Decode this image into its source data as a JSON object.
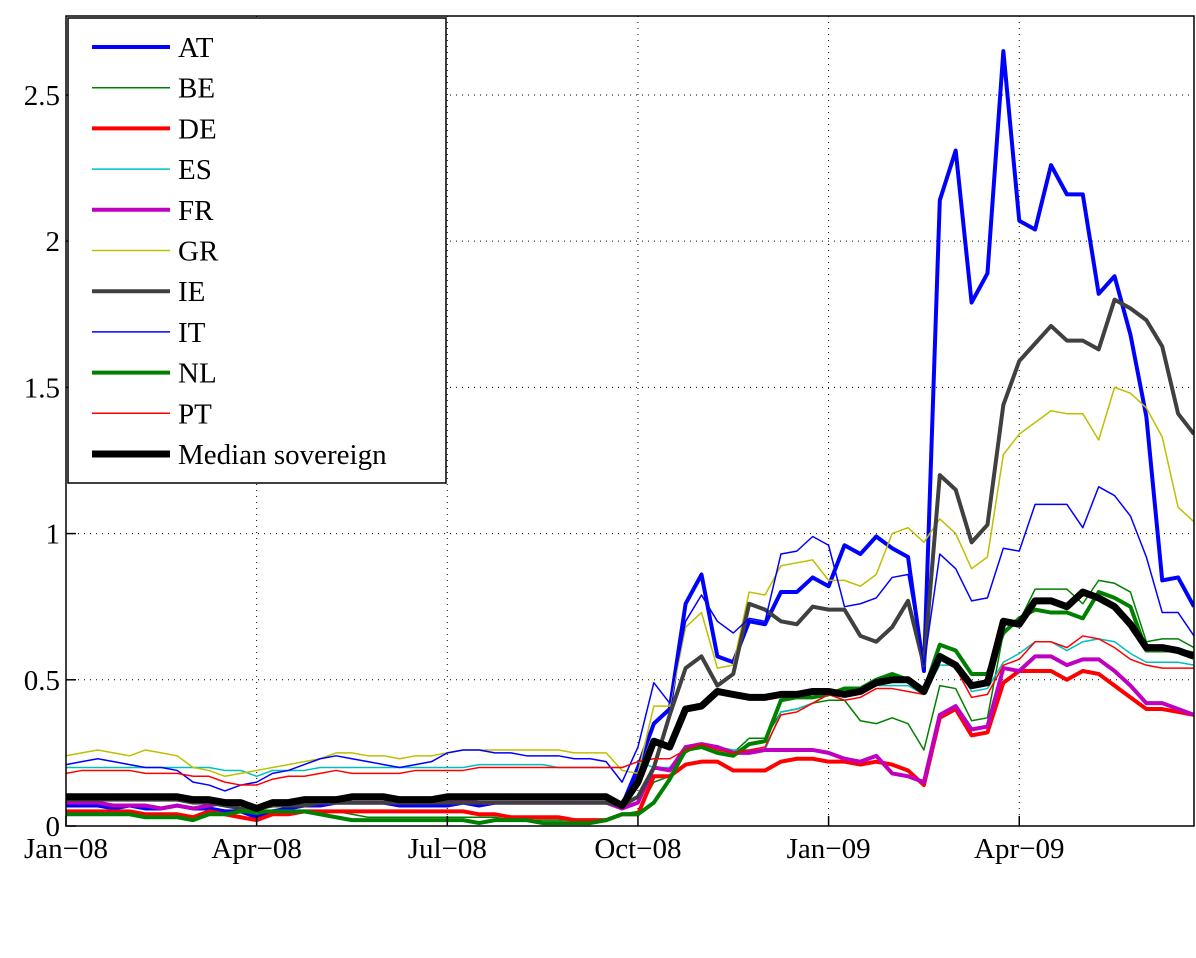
{
  "chart_data": {
    "type": "line",
    "x": [
      0,
      0.25,
      0.5,
      0.75,
      1,
      1.25,
      1.5,
      1.75,
      2,
      2.25,
      2.5,
      2.75,
      3,
      3.25,
      3.5,
      3.75,
      4,
      4.25,
      4.5,
      4.75,
      5,
      5.25,
      5.5,
      5.75,
      6,
      6.25,
      6.5,
      6.75,
      7,
      7.25,
      7.5,
      7.75,
      8,
      8.25,
      8.5,
      8.75,
      9,
      9.25,
      9.5,
      9.75,
      10,
      10.25,
      10.5,
      10.75,
      11,
      11.25,
      11.5,
      11.75,
      12,
      12.25,
      12.5,
      12.75,
      13,
      13.25,
      13.5,
      13.75,
      14,
      14.25,
      14.5,
      14.75,
      15,
      15.25,
      15.5,
      15.75,
      16,
      16.25,
      16.5,
      16.75,
      17,
      17.25,
      17.5,
      17.75
    ],
    "xlim": [
      0,
      17.75
    ],
    "xticks": [
      {
        "value": 0,
        "label": "Jan−08"
      },
      {
        "value": 3,
        "label": "Apr−08"
      },
      {
        "value": 6,
        "label": "Jul−08"
      },
      {
        "value": 9,
        "label": "Oct−08"
      },
      {
        "value": 12,
        "label": "Jan−09"
      },
      {
        "value": 15,
        "label": "Apr−09"
      }
    ],
    "ylim": [
      0,
      2.77
    ],
    "yticks": [
      0,
      0.5,
      1,
      1.5,
      2,
      2.5
    ],
    "grid": true,
    "legend": "upper-left",
    "series": [
      {
        "name": "AT",
        "color": "#0000ff",
        "linewidth": 4,
        "values": [
          0.07,
          0.07,
          0.07,
          0.06,
          0.07,
          0.06,
          0.06,
          0.07,
          0.06,
          0.06,
          0.05,
          0.05,
          0.03,
          0.05,
          0.06,
          0.07,
          0.07,
          0.08,
          0.08,
          0.08,
          0.08,
          0.07,
          0.07,
          0.07,
          0.07,
          0.08,
          0.07,
          0.08,
          0.08,
          0.08,
          0.08,
          0.08,
          0.08,
          0.08,
          0.08,
          0.07,
          0.2,
          0.35,
          0.4,
          0.76,
          0.86,
          0.58,
          0.56,
          0.7,
          0.69,
          0.8,
          0.8,
          0.85,
          0.82,
          0.96,
          0.93,
          0.99,
          0.95,
          0.92,
          0.53,
          2.14,
          2.31,
          1.79,
          1.89,
          2.65,
          2.07,
          2.04,
          2.26,
          2.16,
          2.16,
          1.82,
          1.88,
          1.68,
          1.4,
          0.84,
          0.85,
          0.75
        ]
      },
      {
        "name": "BE",
        "color": "#008000",
        "linewidth": 1.5,
        "values": [
          0.04,
          0.04,
          0.04,
          0.04,
          0.04,
          0.03,
          0.03,
          0.03,
          0.02,
          0.04,
          0.04,
          0.05,
          0.04,
          0.05,
          0.05,
          0.05,
          0.05,
          0.05,
          0.04,
          0.03,
          0.03,
          0.03,
          0.03,
          0.03,
          0.03,
          0.03,
          0.03,
          0.03,
          0.02,
          0.02,
          0.02,
          0.02,
          0.02,
          0.02,
          0.02,
          0.04,
          0.05,
          0.15,
          0.17,
          0.25,
          0.28,
          0.27,
          0.25,
          0.3,
          0.3,
          0.39,
          0.4,
          0.42,
          0.43,
          0.43,
          0.36,
          0.35,
          0.37,
          0.35,
          0.26,
          0.48,
          0.47,
          0.36,
          0.37,
          0.66,
          0.7,
          0.81,
          0.81,
          0.81,
          0.76,
          0.84,
          0.83,
          0.8,
          0.63,
          0.64,
          0.64,
          0.61
        ]
      },
      {
        "name": "DE",
        "color": "#ff0000",
        "linewidth": 4,
        "values": [
          0.05,
          0.05,
          0.05,
          0.05,
          0.05,
          0.04,
          0.04,
          0.04,
          0.03,
          0.05,
          0.04,
          0.03,
          0.02,
          0.04,
          0.04,
          0.05,
          0.05,
          0.05,
          0.05,
          0.05,
          0.05,
          0.05,
          0.05,
          0.05,
          0.05,
          0.05,
          0.04,
          0.04,
          0.03,
          0.03,
          0.03,
          0.03,
          0.02,
          0.02,
          0.02,
          0.04,
          0.04,
          0.17,
          0.17,
          0.21,
          0.22,
          0.22,
          0.19,
          0.19,
          0.19,
          0.22,
          0.23,
          0.23,
          0.22,
          0.22,
          0.21,
          0.22,
          0.21,
          0.19,
          0.14,
          0.37,
          0.4,
          0.31,
          0.32,
          0.49,
          0.53,
          0.53,
          0.53,
          0.5,
          0.53,
          0.52,
          0.48,
          0.44,
          0.4,
          0.4,
          0.39,
          0.38
        ]
      },
      {
        "name": "ES",
        "color": "#00bfbf",
        "linewidth": 1.5,
        "values": [
          0.2,
          0.2,
          0.2,
          0.2,
          0.2,
          0.2,
          0.2,
          0.2,
          0.2,
          0.2,
          0.19,
          0.19,
          0.17,
          0.19,
          0.19,
          0.19,
          0.2,
          0.2,
          0.2,
          0.2,
          0.2,
          0.2,
          0.2,
          0.2,
          0.2,
          0.2,
          0.21,
          0.21,
          0.21,
          0.21,
          0.21,
          0.2,
          0.2,
          0.2,
          0.2,
          0.2,
          0.22,
          0.2,
          0.2,
          0.27,
          0.28,
          0.27,
          0.26,
          0.26,
          0.26,
          0.39,
          0.4,
          0.42,
          0.45,
          0.45,
          0.46,
          0.48,
          0.48,
          0.48,
          0.45,
          0.55,
          0.55,
          0.46,
          0.47,
          0.56,
          0.59,
          0.63,
          0.63,
          0.6,
          0.63,
          0.64,
          0.63,
          0.59,
          0.56,
          0.56,
          0.56,
          0.55
        ]
      },
      {
        "name": "FR",
        "color": "#bf00bf",
        "linewidth": 4,
        "values": [
          0.08,
          0.08,
          0.08,
          0.07,
          0.07,
          0.07,
          0.06,
          0.07,
          0.06,
          0.07,
          0.08,
          0.08,
          0.06,
          0.07,
          0.08,
          0.08,
          0.08,
          0.08,
          0.08,
          0.08,
          0.08,
          0.08,
          0.08,
          0.09,
          0.09,
          0.09,
          0.08,
          0.08,
          0.08,
          0.08,
          0.08,
          0.08,
          0.08,
          0.08,
          0.08,
          0.06,
          0.08,
          0.2,
          0.19,
          0.27,
          0.28,
          0.27,
          0.25,
          0.25,
          0.26,
          0.26,
          0.26,
          0.26,
          0.25,
          0.23,
          0.22,
          0.24,
          0.18,
          0.17,
          0.15,
          0.38,
          0.41,
          0.33,
          0.34,
          0.54,
          0.53,
          0.58,
          0.58,
          0.55,
          0.57,
          0.57,
          0.53,
          0.48,
          0.42,
          0.42,
          0.4,
          0.38
        ]
      },
      {
        "name": "GR",
        "color": "#bfbf00",
        "linewidth": 1.5,
        "values": [
          0.24,
          0.25,
          0.26,
          0.25,
          0.24,
          0.26,
          0.25,
          0.24,
          0.2,
          0.19,
          0.17,
          0.18,
          0.19,
          0.2,
          0.21,
          0.22,
          0.23,
          0.25,
          0.25,
          0.24,
          0.24,
          0.23,
          0.24,
          0.24,
          0.25,
          0.26,
          0.26,
          0.26,
          0.26,
          0.26,
          0.26,
          0.26,
          0.25,
          0.25,
          0.25,
          0.19,
          0.18,
          0.41,
          0.41,
          0.68,
          0.73,
          0.54,
          0.55,
          0.8,
          0.79,
          0.89,
          0.9,
          0.91,
          0.84,
          0.84,
          0.82,
          0.86,
          1.0,
          1.02,
          0.97,
          1.05,
          1.0,
          0.88,
          0.92,
          1.27,
          1.34,
          1.38,
          1.42,
          1.41,
          1.41,
          1.32,
          1.5,
          1.48,
          1.43,
          1.33,
          1.09,
          1.04
        ]
      },
      {
        "name": "IE",
        "color": "#404040",
        "linewidth": 4,
        "values": [
          0.09,
          0.09,
          0.09,
          0.09,
          0.09,
          0.09,
          0.09,
          0.09,
          0.08,
          0.08,
          0.07,
          0.06,
          0.06,
          0.07,
          0.07,
          0.07,
          0.08,
          0.08,
          0.08,
          0.08,
          0.08,
          0.08,
          0.08,
          0.08,
          0.08,
          0.08,
          0.08,
          0.08,
          0.08,
          0.08,
          0.08,
          0.08,
          0.08,
          0.08,
          0.08,
          0.07,
          0.1,
          0.2,
          0.38,
          0.54,
          0.58,
          0.48,
          0.52,
          0.76,
          0.74,
          0.7,
          0.69,
          0.75,
          0.74,
          0.74,
          0.65,
          0.63,
          0.68,
          0.77,
          0.55,
          1.2,
          1.15,
          0.97,
          1.03,
          1.44,
          1.59,
          1.65,
          1.71,
          1.66,
          1.66,
          1.63,
          1.8,
          1.77,
          1.73,
          1.64,
          1.41,
          1.34
        ]
      },
      {
        "name": "IT",
        "color": "#0000ff",
        "linewidth": 1.5,
        "values": [
          0.21,
          0.22,
          0.23,
          0.22,
          0.21,
          0.2,
          0.2,
          0.19,
          0.15,
          0.14,
          0.12,
          0.14,
          0.15,
          0.18,
          0.19,
          0.21,
          0.23,
          0.24,
          0.23,
          0.22,
          0.21,
          0.2,
          0.21,
          0.22,
          0.25,
          0.26,
          0.26,
          0.25,
          0.25,
          0.24,
          0.24,
          0.24,
          0.23,
          0.23,
          0.22,
          0.15,
          0.27,
          0.49,
          0.42,
          0.7,
          0.79,
          0.7,
          0.66,
          0.71,
          0.7,
          0.93,
          0.94,
          0.99,
          0.96,
          0.75,
          0.76,
          0.78,
          0.85,
          0.86,
          0.55,
          0.93,
          0.88,
          0.77,
          0.78,
          0.95,
          0.94,
          1.1,
          1.1,
          1.1,
          1.02,
          1.16,
          1.13,
          1.06,
          0.92,
          0.73,
          0.73,
          0.65
        ]
      },
      {
        "name": "NL",
        "color": "#008000",
        "linewidth": 4,
        "values": [
          0.04,
          0.04,
          0.04,
          0.04,
          0.04,
          0.03,
          0.03,
          0.03,
          0.02,
          0.04,
          0.04,
          0.05,
          0.05,
          0.05,
          0.05,
          0.05,
          0.04,
          0.03,
          0.02,
          0.02,
          0.02,
          0.02,
          0.02,
          0.02,
          0.02,
          0.02,
          0.01,
          0.02,
          0.02,
          0.02,
          0.01,
          0.01,
          0.01,
          0.01,
          0.02,
          0.04,
          0.04,
          0.08,
          0.16,
          0.26,
          0.27,
          0.25,
          0.24,
          0.28,
          0.29,
          0.43,
          0.44,
          0.44,
          0.45,
          0.47,
          0.47,
          0.5,
          0.52,
          0.5,
          0.46,
          0.62,
          0.6,
          0.52,
          0.52,
          0.66,
          0.71,
          0.74,
          0.73,
          0.73,
          0.71,
          0.8,
          0.78,
          0.75,
          0.6,
          0.6,
          0.6,
          0.59
        ]
      },
      {
        "name": "PT",
        "color": "#ff0000",
        "linewidth": 1.5,
        "values": [
          0.18,
          0.19,
          0.19,
          0.19,
          0.19,
          0.18,
          0.18,
          0.18,
          0.17,
          0.17,
          0.15,
          0.14,
          0.14,
          0.16,
          0.17,
          0.17,
          0.18,
          0.19,
          0.18,
          0.18,
          0.18,
          0.18,
          0.19,
          0.19,
          0.19,
          0.19,
          0.2,
          0.2,
          0.2,
          0.2,
          0.2,
          0.2,
          0.2,
          0.2,
          0.2,
          0.2,
          0.22,
          0.23,
          0.23,
          0.26,
          0.28,
          0.26,
          0.25,
          0.26,
          0.27,
          0.38,
          0.39,
          0.42,
          0.45,
          0.43,
          0.44,
          0.47,
          0.47,
          0.46,
          0.45,
          0.57,
          0.54,
          0.44,
          0.45,
          0.55,
          0.57,
          0.63,
          0.63,
          0.61,
          0.65,
          0.64,
          0.61,
          0.57,
          0.55,
          0.54,
          0.54,
          0.54
        ]
      },
      {
        "name": "Median sovereign",
        "color": "#000000",
        "linewidth": 7,
        "values": [
          0.1,
          0.1,
          0.1,
          0.1,
          0.1,
          0.1,
          0.1,
          0.1,
          0.09,
          0.09,
          0.08,
          0.08,
          0.06,
          0.08,
          0.08,
          0.09,
          0.09,
          0.09,
          0.1,
          0.1,
          0.1,
          0.09,
          0.09,
          0.09,
          0.1,
          0.1,
          0.1,
          0.1,
          0.1,
          0.1,
          0.1,
          0.1,
          0.1,
          0.1,
          0.1,
          0.07,
          0.15,
          0.29,
          0.27,
          0.4,
          0.41,
          0.46,
          0.45,
          0.44,
          0.44,
          0.45,
          0.45,
          0.46,
          0.46,
          0.45,
          0.46,
          0.49,
          0.5,
          0.5,
          0.46,
          0.58,
          0.55,
          0.48,
          0.49,
          0.7,
          0.69,
          0.77,
          0.77,
          0.75,
          0.8,
          0.78,
          0.75,
          0.69,
          0.61,
          0.61,
          0.6,
          0.58
        ]
      }
    ]
  }
}
